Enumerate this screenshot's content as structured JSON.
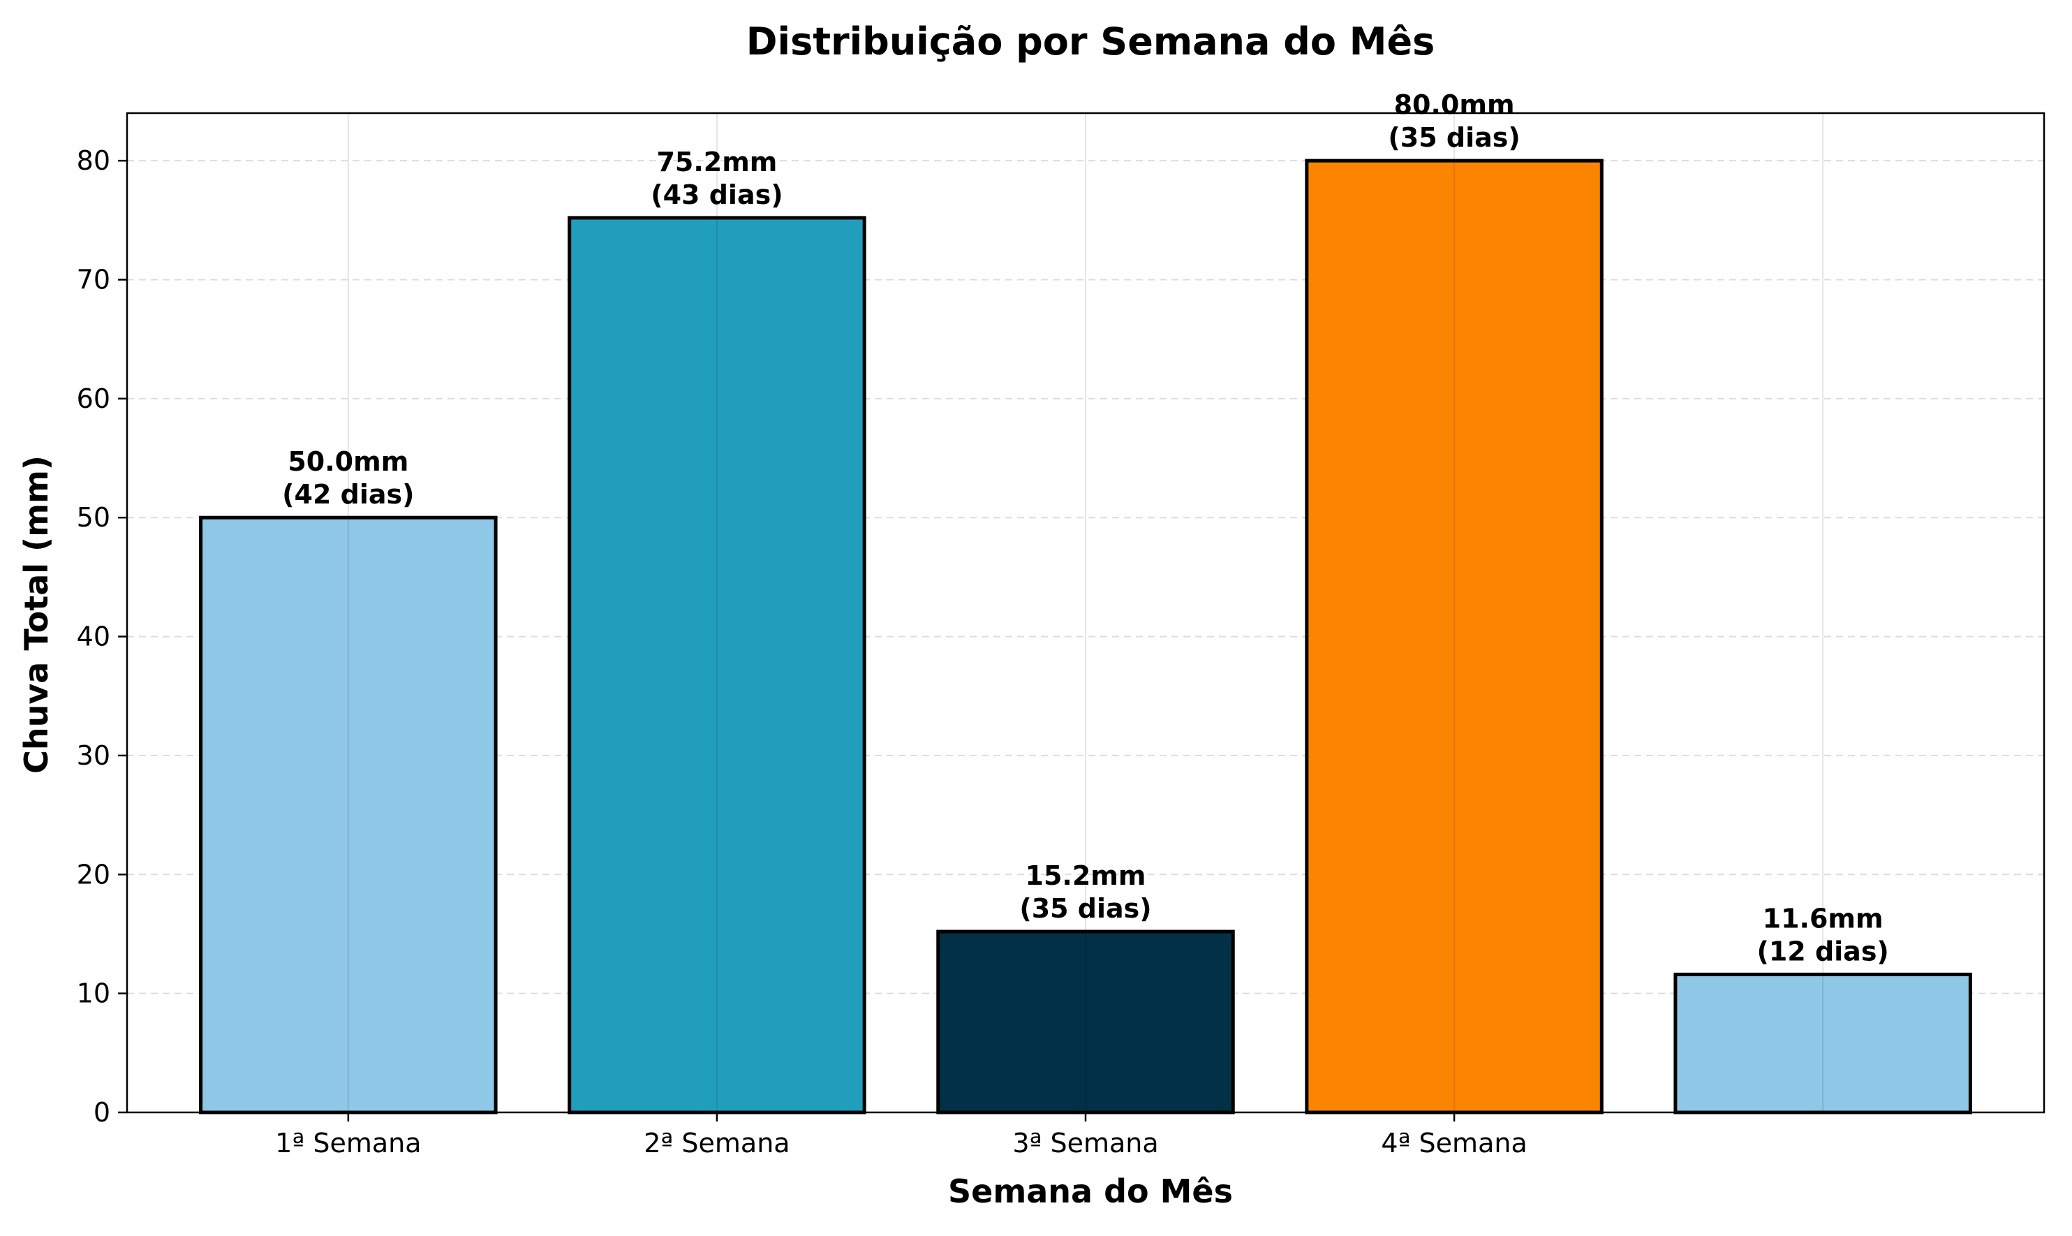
{
  "chart_data": {
    "type": "bar",
    "title": "Distribuição por Semana do Mês",
    "xlabel": "Semana do Mês",
    "ylabel": "Chuva Total (mm)",
    "categories": [
      "1ª Semana",
      "2ª Semana",
      "3ª Semana",
      "4ª Semana",
      ""
    ],
    "values": [
      50.0,
      75.2,
      15.2,
      80.0,
      11.6
    ],
    "data_labels": [
      [
        "50.0mm",
        "(42 dias)"
      ],
      [
        "75.2mm",
        "(43 dias)"
      ],
      [
        "15.2mm",
        "(35 dias)"
      ],
      [
        "80.0mm",
        "(35 dias)"
      ],
      [
        "11.6mm",
        "(12 dias)"
      ]
    ],
    "colors": [
      "#8ec8e6",
      "#219ebc",
      "#023047",
      "#fb8500",
      "#8ec8e6"
    ],
    "ylim": [
      0,
      84
    ],
    "yticks": [
      "0",
      "10",
      "20",
      "30",
      "40",
      "50",
      "60",
      "70",
      "80"
    ],
    "grid": true,
    "legend": false
  }
}
